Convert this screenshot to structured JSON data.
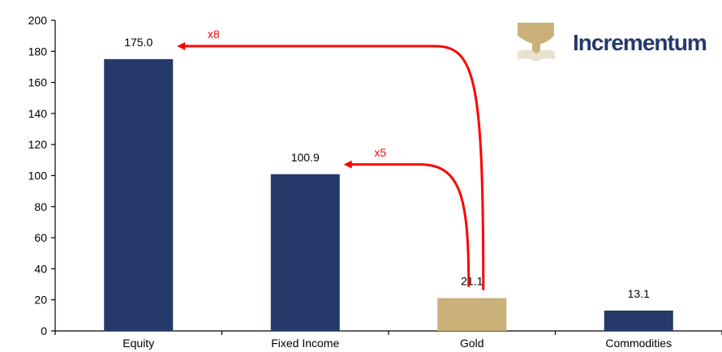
{
  "chart_data": {
    "type": "bar",
    "categories": [
      "Equity",
      "Fixed Income",
      "Gold",
      "Commodities"
    ],
    "values": [
      175.0,
      100.9,
      21.1,
      13.1
    ],
    "value_labels": [
      "175.0",
      "100.9",
      "21.1",
      "13.1"
    ],
    "bar_colors": [
      "#253a6a",
      "#253a6a",
      "#c9b179",
      "#253a6a"
    ],
    "ylim": [
      0,
      200
    ],
    "yticks": [
      0,
      20,
      40,
      60,
      80,
      100,
      120,
      140,
      160,
      180,
      200
    ],
    "grid": false,
    "legend": "none",
    "annotations": [
      {
        "text": "x8",
        "from": "Gold",
        "to": "Equity",
        "color": "#ff0000"
      },
      {
        "text": "x5",
        "from": "Gold",
        "to": "Fixed Income",
        "color": "#ff0000"
      }
    ]
  },
  "logo": {
    "text": "Incrementum",
    "text_color": "#253a6a",
    "tree_color": "#c9b179"
  }
}
